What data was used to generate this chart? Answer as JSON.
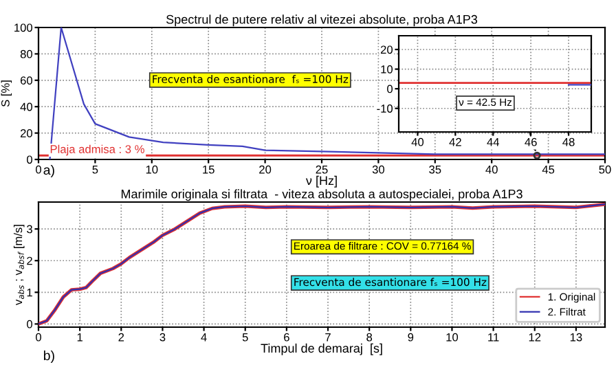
{
  "chart_data": [
    {
      "type": "line",
      "title": "Spectrul de putere relativ al vitezei absolute, proba A1P3",
      "xlabel": "ν [Hz]",
      "ylabel": "S [%]",
      "series": [
        {
          "color": "#4040c0",
          "x": [
            1,
            2,
            4,
            5,
            8,
            11,
            15,
            18,
            20,
            25,
            30,
            35,
            40,
            45,
            50
          ],
          "values": [
            0,
            100,
            42,
            27,
            17,
            13,
            11,
            10,
            7,
            6,
            5,
            4,
            4,
            4,
            4
          ]
        }
      ],
      "xlim": [
        0,
        50
      ],
      "ylim": [
        0,
        100
      ],
      "xticks": [
        0,
        5,
        10,
        15,
        20,
        25,
        30,
        35,
        40,
        45,
        50
      ],
      "yticks": [
        0,
        20,
        40,
        60,
        80,
        100
      ],
      "grid": true,
      "line_style": "solid",
      "marker": "none",
      "ref_lines": [
        {
          "axis": "y",
          "value": 3,
          "label": "Plaja admisa : 3 %",
          "color": "#e03030"
        }
      ],
      "annotations": [
        "Frecventa de esantionare  fₛ =100 Hz",
        "a)",
        {
          "text": "ν = 42.5 Hz",
          "x": 44,
          "y": 3
        }
      ]
    },
    {
      "type": "line",
      "series": [
        {
          "color": "#4040c0",
          "x": [
            48,
            49.2
          ],
          "values": [
            2,
            2
          ]
        }
      ],
      "xlim": [
        39,
        49.2
      ],
      "ylim": [
        -22,
        27
      ],
      "xticks": [
        40,
        42,
        44,
        46,
        48
      ],
      "yticks": [
        -10,
        0,
        10,
        20
      ],
      "grid": true,
      "line_style": "solid",
      "marker": "none",
      "ref_lines": [
        {
          "axis": "y",
          "value": 3,
          "color": "#e03030"
        }
      ]
    },
    {
      "type": "line",
      "title": "Marimile originala si filtrata  - viteza absoluta a autospecialei, proba A1P3",
      "xlabel": "Timpul de demaraj  [s]",
      "ylabel": "v$_{abs}$ ; v$_{absf}$ [m/s]",
      "x": [
        0,
        0.2,
        0.4,
        0.6,
        0.8,
        1.0,
        1.15,
        1.3,
        1.5,
        1.8,
        2.0,
        2.2,
        2.5,
        2.8,
        3.0,
        3.3,
        3.6,
        3.9,
        4.2,
        4.5,
        5.0,
        5.5,
        6.0,
        7.0,
        8.0,
        9.0,
        10.0,
        10.5,
        11.0,
        12.0,
        13.0,
        13.7
      ],
      "series": [
        {
          "name": "1. Original",
          "color": "#e03030",
          "values": [
            0,
            0.1,
            0.45,
            0.85,
            1.08,
            1.1,
            1.15,
            1.35,
            1.6,
            1.75,
            1.9,
            2.1,
            2.35,
            2.6,
            2.8,
            3.0,
            3.25,
            3.5,
            3.65,
            3.7,
            3.72,
            3.68,
            3.7,
            3.68,
            3.7,
            3.68,
            3.7,
            3.66,
            3.7,
            3.72,
            3.68,
            3.78
          ]
        },
        {
          "name": "2. Filtrat",
          "color": "#3030b0",
          "values": [
            0,
            0.1,
            0.45,
            0.85,
            1.08,
            1.1,
            1.15,
            1.35,
            1.6,
            1.75,
            1.9,
            2.1,
            2.35,
            2.6,
            2.8,
            3.0,
            3.25,
            3.5,
            3.65,
            3.7,
            3.72,
            3.68,
            3.7,
            3.68,
            3.7,
            3.68,
            3.7,
            3.66,
            3.7,
            3.72,
            3.68,
            3.78
          ]
        }
      ],
      "xlim": [
        0,
        13.7
      ],
      "ylim": [
        -0.1,
        3.85
      ],
      "xticks": [
        0,
        1,
        2,
        3,
        4,
        5,
        6,
        7,
        8,
        9,
        10,
        11,
        12,
        13
      ],
      "yticks": [
        0,
        1,
        2,
        3
      ],
      "grid": true,
      "legend": "bottom right",
      "line_style": "solid",
      "marker": "none",
      "annotations": [
        "Eroarea de filtrare : COV = 0.77164 %",
        "Frecventa de esantionare fₛ =100 Hz",
        "b)"
      ]
    }
  ]
}
